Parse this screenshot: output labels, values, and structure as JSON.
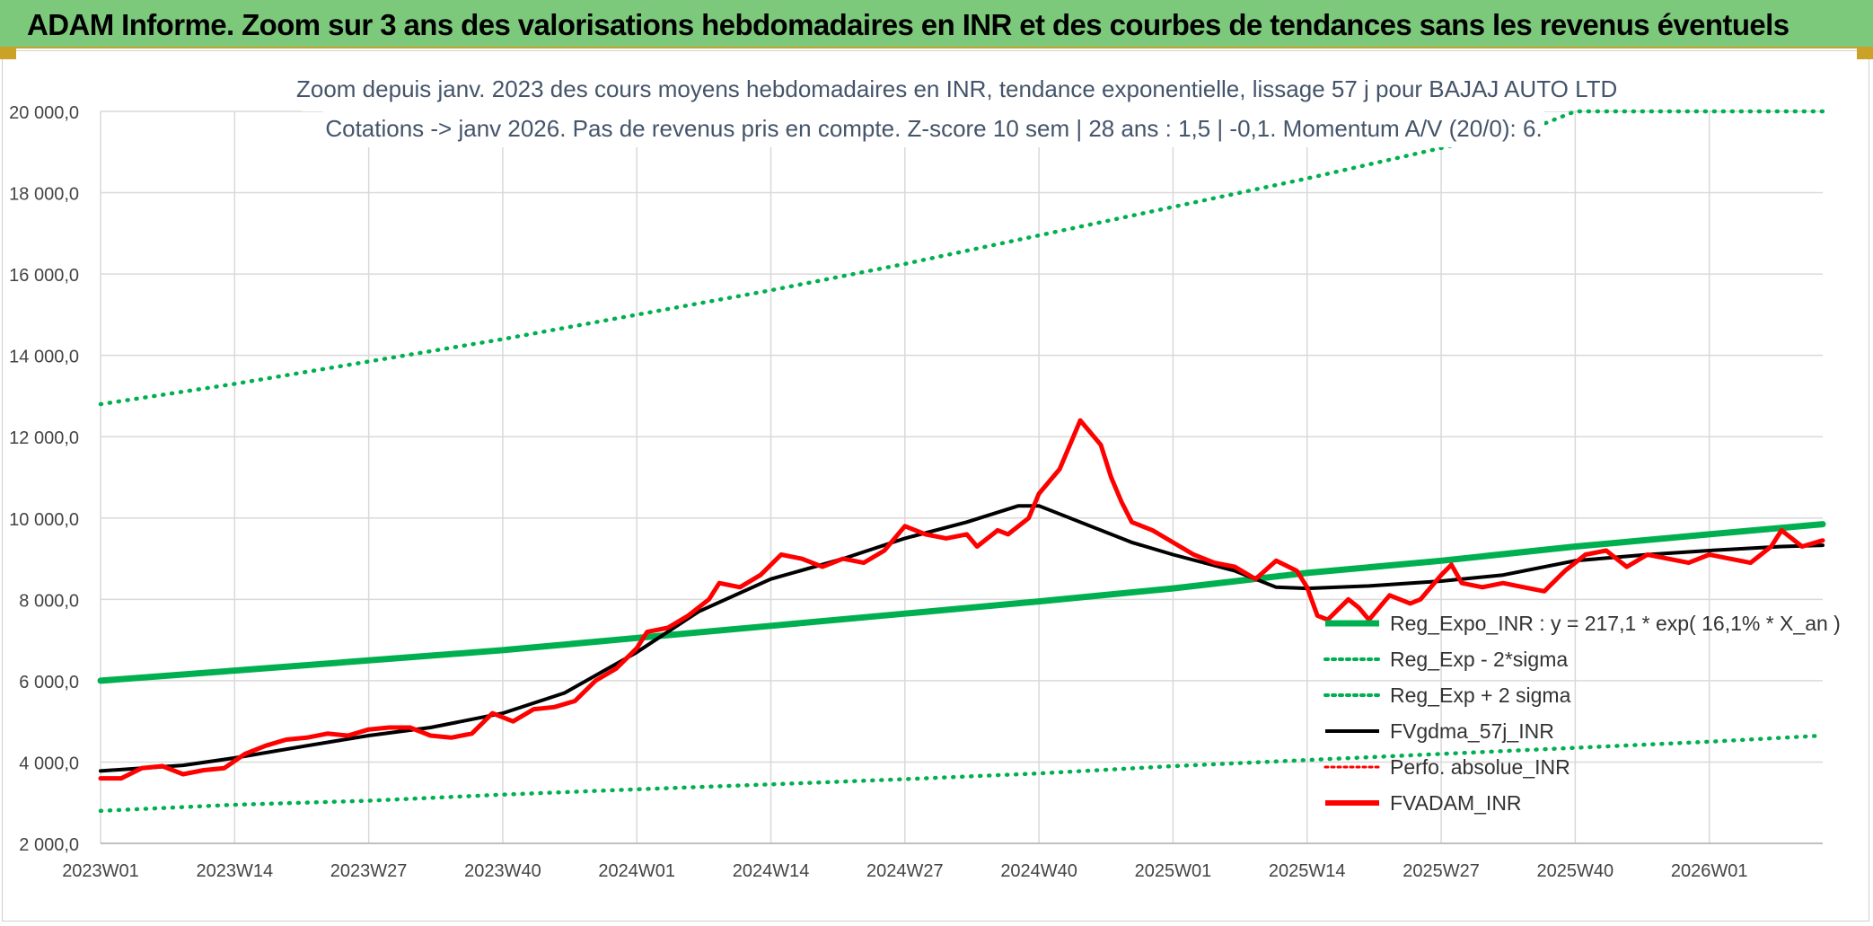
{
  "header": {
    "title": "ADAM Informe. Zoom sur 3 ans des valorisations hebdomadaires en INR et des courbes de tendances sans les revenus éventuels"
  },
  "chart_data": {
    "type": "line",
    "title": "Zoom depuis janv. 2023 des cours moyens hebdomadaires en INR, tendance exponentielle, lissage 57 j pour BAJAJ AUTO LTD",
    "subtitle": "Cotations -> janv 2026. Pas de revenus pris en compte. Z-score 10 sem | 28 ans : 1,5 | -0,1. Momentum A/V (20/0): 6.",
    "xlabel": "",
    "ylabel": "",
    "ylim": [
      2000,
      20000
    ],
    "yticks": [
      "2 000,0",
      "4 000,0",
      "6 000,0",
      "8 000,0",
      "10 000,0",
      "12 000,0",
      "14 000,0",
      "16 000,0",
      "18 000,0",
      "20 000,0"
    ],
    "categories": [
      "2023W01",
      "2023W14",
      "2023W27",
      "2023W40",
      "2024W01",
      "2024W14",
      "2024W27",
      "2024W40",
      "2025W01",
      "2025W14",
      "2025W27",
      "2025W40",
      "2026W01"
    ],
    "legend_position": "right",
    "series": [
      {
        "name": "Reg_Expo_INR : y = 217,1 * exp( 16,1% *  X_an )",
        "color": "#00b050",
        "style": "solid-thick",
        "points": [
          [
            0,
            6000
          ],
          [
            13,
            6250
          ],
          [
            26,
            6500
          ],
          [
            39,
            6750
          ],
          [
            52,
            7050
          ],
          [
            65,
            7350
          ],
          [
            78,
            7650
          ],
          [
            91,
            7950
          ],
          [
            104,
            8270
          ],
          [
            117,
            8650
          ],
          [
            130,
            8950
          ],
          [
            143,
            9300
          ],
          [
            156,
            9600
          ],
          [
            167,
            9850
          ]
        ]
      },
      {
        "name": "Reg_Exp - 2*sigma",
        "color": "#00b050",
        "style": "dotted",
        "points": [
          [
            0,
            2800
          ],
          [
            13,
            2950
          ],
          [
            26,
            3050
          ],
          [
            39,
            3200
          ],
          [
            52,
            3330
          ],
          [
            65,
            3450
          ],
          [
            78,
            3580
          ],
          [
            91,
            3720
          ],
          [
            104,
            3900
          ],
          [
            117,
            4050
          ],
          [
            130,
            4200
          ],
          [
            143,
            4350
          ],
          [
            156,
            4500
          ],
          [
            167,
            4650
          ]
        ]
      },
      {
        "name": "Reg_Exp + 2 sigma",
        "color": "#00b050",
        "style": "dotted",
        "points": [
          [
            0,
            12800
          ],
          [
            13,
            13300
          ],
          [
            26,
            13850
          ],
          [
            39,
            14400
          ],
          [
            52,
            15000
          ],
          [
            65,
            15600
          ],
          [
            78,
            16250
          ],
          [
            91,
            16950
          ],
          [
            104,
            17650
          ],
          [
            117,
            18350
          ],
          [
            130,
            19100
          ],
          [
            140,
            19700
          ],
          [
            143,
            20000
          ],
          [
            167,
            20000
          ]
        ]
      },
      {
        "name": "FVgdma_57j_INR",
        "color": "#000000",
        "style": "solid",
        "points": [
          [
            0,
            3780
          ],
          [
            8,
            3920
          ],
          [
            13,
            4100
          ],
          [
            20,
            4400
          ],
          [
            26,
            4650
          ],
          [
            32,
            4850
          ],
          [
            39,
            5200
          ],
          [
            45,
            5700
          ],
          [
            52,
            6700
          ],
          [
            58,
            7700
          ],
          [
            65,
            8500
          ],
          [
            72,
            9000
          ],
          [
            78,
            9500
          ],
          [
            84,
            9900
          ],
          [
            89,
            10300
          ],
          [
            91,
            10300
          ],
          [
            95,
            9900
          ],
          [
            100,
            9400
          ],
          [
            104,
            9100
          ],
          [
            110,
            8700
          ],
          [
            114,
            8300
          ],
          [
            117,
            8270
          ],
          [
            123,
            8330
          ],
          [
            130,
            8450
          ],
          [
            136,
            8600
          ],
          [
            143,
            8950
          ],
          [
            150,
            9100
          ],
          [
            156,
            9200
          ],
          [
            163,
            9300
          ],
          [
            167,
            9330
          ]
        ]
      },
      {
        "name": "Perfo. absolue_INR",
        "color": "#ff0000",
        "style": "dotted",
        "points": []
      },
      {
        "name": "FVADAM_INR",
        "color": "#ff0000",
        "style": "solid-thick",
        "points": [
          [
            0,
            3600
          ],
          [
            2,
            3600
          ],
          [
            4,
            3850
          ],
          [
            6,
            3900
          ],
          [
            8,
            3700
          ],
          [
            10,
            3800
          ],
          [
            12,
            3850
          ],
          [
            14,
            4200
          ],
          [
            16,
            4400
          ],
          [
            18,
            4550
          ],
          [
            20,
            4600
          ],
          [
            22,
            4700
          ],
          [
            24,
            4650
          ],
          [
            26,
            4800
          ],
          [
            28,
            4850
          ],
          [
            30,
            4850
          ],
          [
            32,
            4650
          ],
          [
            34,
            4600
          ],
          [
            36,
            4700
          ],
          [
            38,
            5200
          ],
          [
            40,
            5000
          ],
          [
            42,
            5300
          ],
          [
            44,
            5350
          ],
          [
            46,
            5500
          ],
          [
            48,
            6000
          ],
          [
            50,
            6300
          ],
          [
            52,
            6800
          ],
          [
            53,
            7200
          ],
          [
            55,
            7300
          ],
          [
            57,
            7600
          ],
          [
            59,
            8000
          ],
          [
            60,
            8400
          ],
          [
            62,
            8300
          ],
          [
            64,
            8600
          ],
          [
            66,
            9100
          ],
          [
            68,
            9000
          ],
          [
            70,
            8800
          ],
          [
            72,
            9000
          ],
          [
            74,
            8900
          ],
          [
            76,
            9200
          ],
          [
            78,
            9800
          ],
          [
            80,
            9600
          ],
          [
            82,
            9500
          ],
          [
            84,
            9600
          ],
          [
            85,
            9300
          ],
          [
            87,
            9700
          ],
          [
            88,
            9600
          ],
          [
            90,
            10000
          ],
          [
            91,
            10600
          ],
          [
            93,
            11200
          ],
          [
            94,
            11800
          ],
          [
            95,
            12400
          ],
          [
            96,
            12100
          ],
          [
            97,
            11800
          ],
          [
            98,
            11000
          ],
          [
            99,
            10400
          ],
          [
            100,
            9900
          ],
          [
            102,
            9700
          ],
          [
            104,
            9400
          ],
          [
            106,
            9100
          ],
          [
            108,
            8900
          ],
          [
            110,
            8800
          ],
          [
            112,
            8500
          ],
          [
            114,
            8950
          ],
          [
            116,
            8700
          ],
          [
            117,
            8300
          ],
          [
            118,
            7600
          ],
          [
            119,
            7500
          ],
          [
            121,
            8000
          ],
          [
            122,
            7800
          ],
          [
            123,
            7500
          ],
          [
            125,
            8100
          ],
          [
            127,
            7900
          ],
          [
            128,
            8000
          ],
          [
            130,
            8600
          ],
          [
            131,
            8850
          ],
          [
            132,
            8400
          ],
          [
            134,
            8300
          ],
          [
            136,
            8400
          ],
          [
            138,
            8300
          ],
          [
            140,
            8200
          ],
          [
            142,
            8700
          ],
          [
            144,
            9100
          ],
          [
            146,
            9200
          ],
          [
            148,
            8800
          ],
          [
            150,
            9100
          ],
          [
            152,
            9000
          ],
          [
            154,
            8900
          ],
          [
            156,
            9100
          ],
          [
            158,
            9000
          ],
          [
            160,
            8900
          ],
          [
            162,
            9300
          ],
          [
            163,
            9700
          ],
          [
            165,
            9300
          ],
          [
            167,
            9450
          ]
        ]
      }
    ]
  }
}
